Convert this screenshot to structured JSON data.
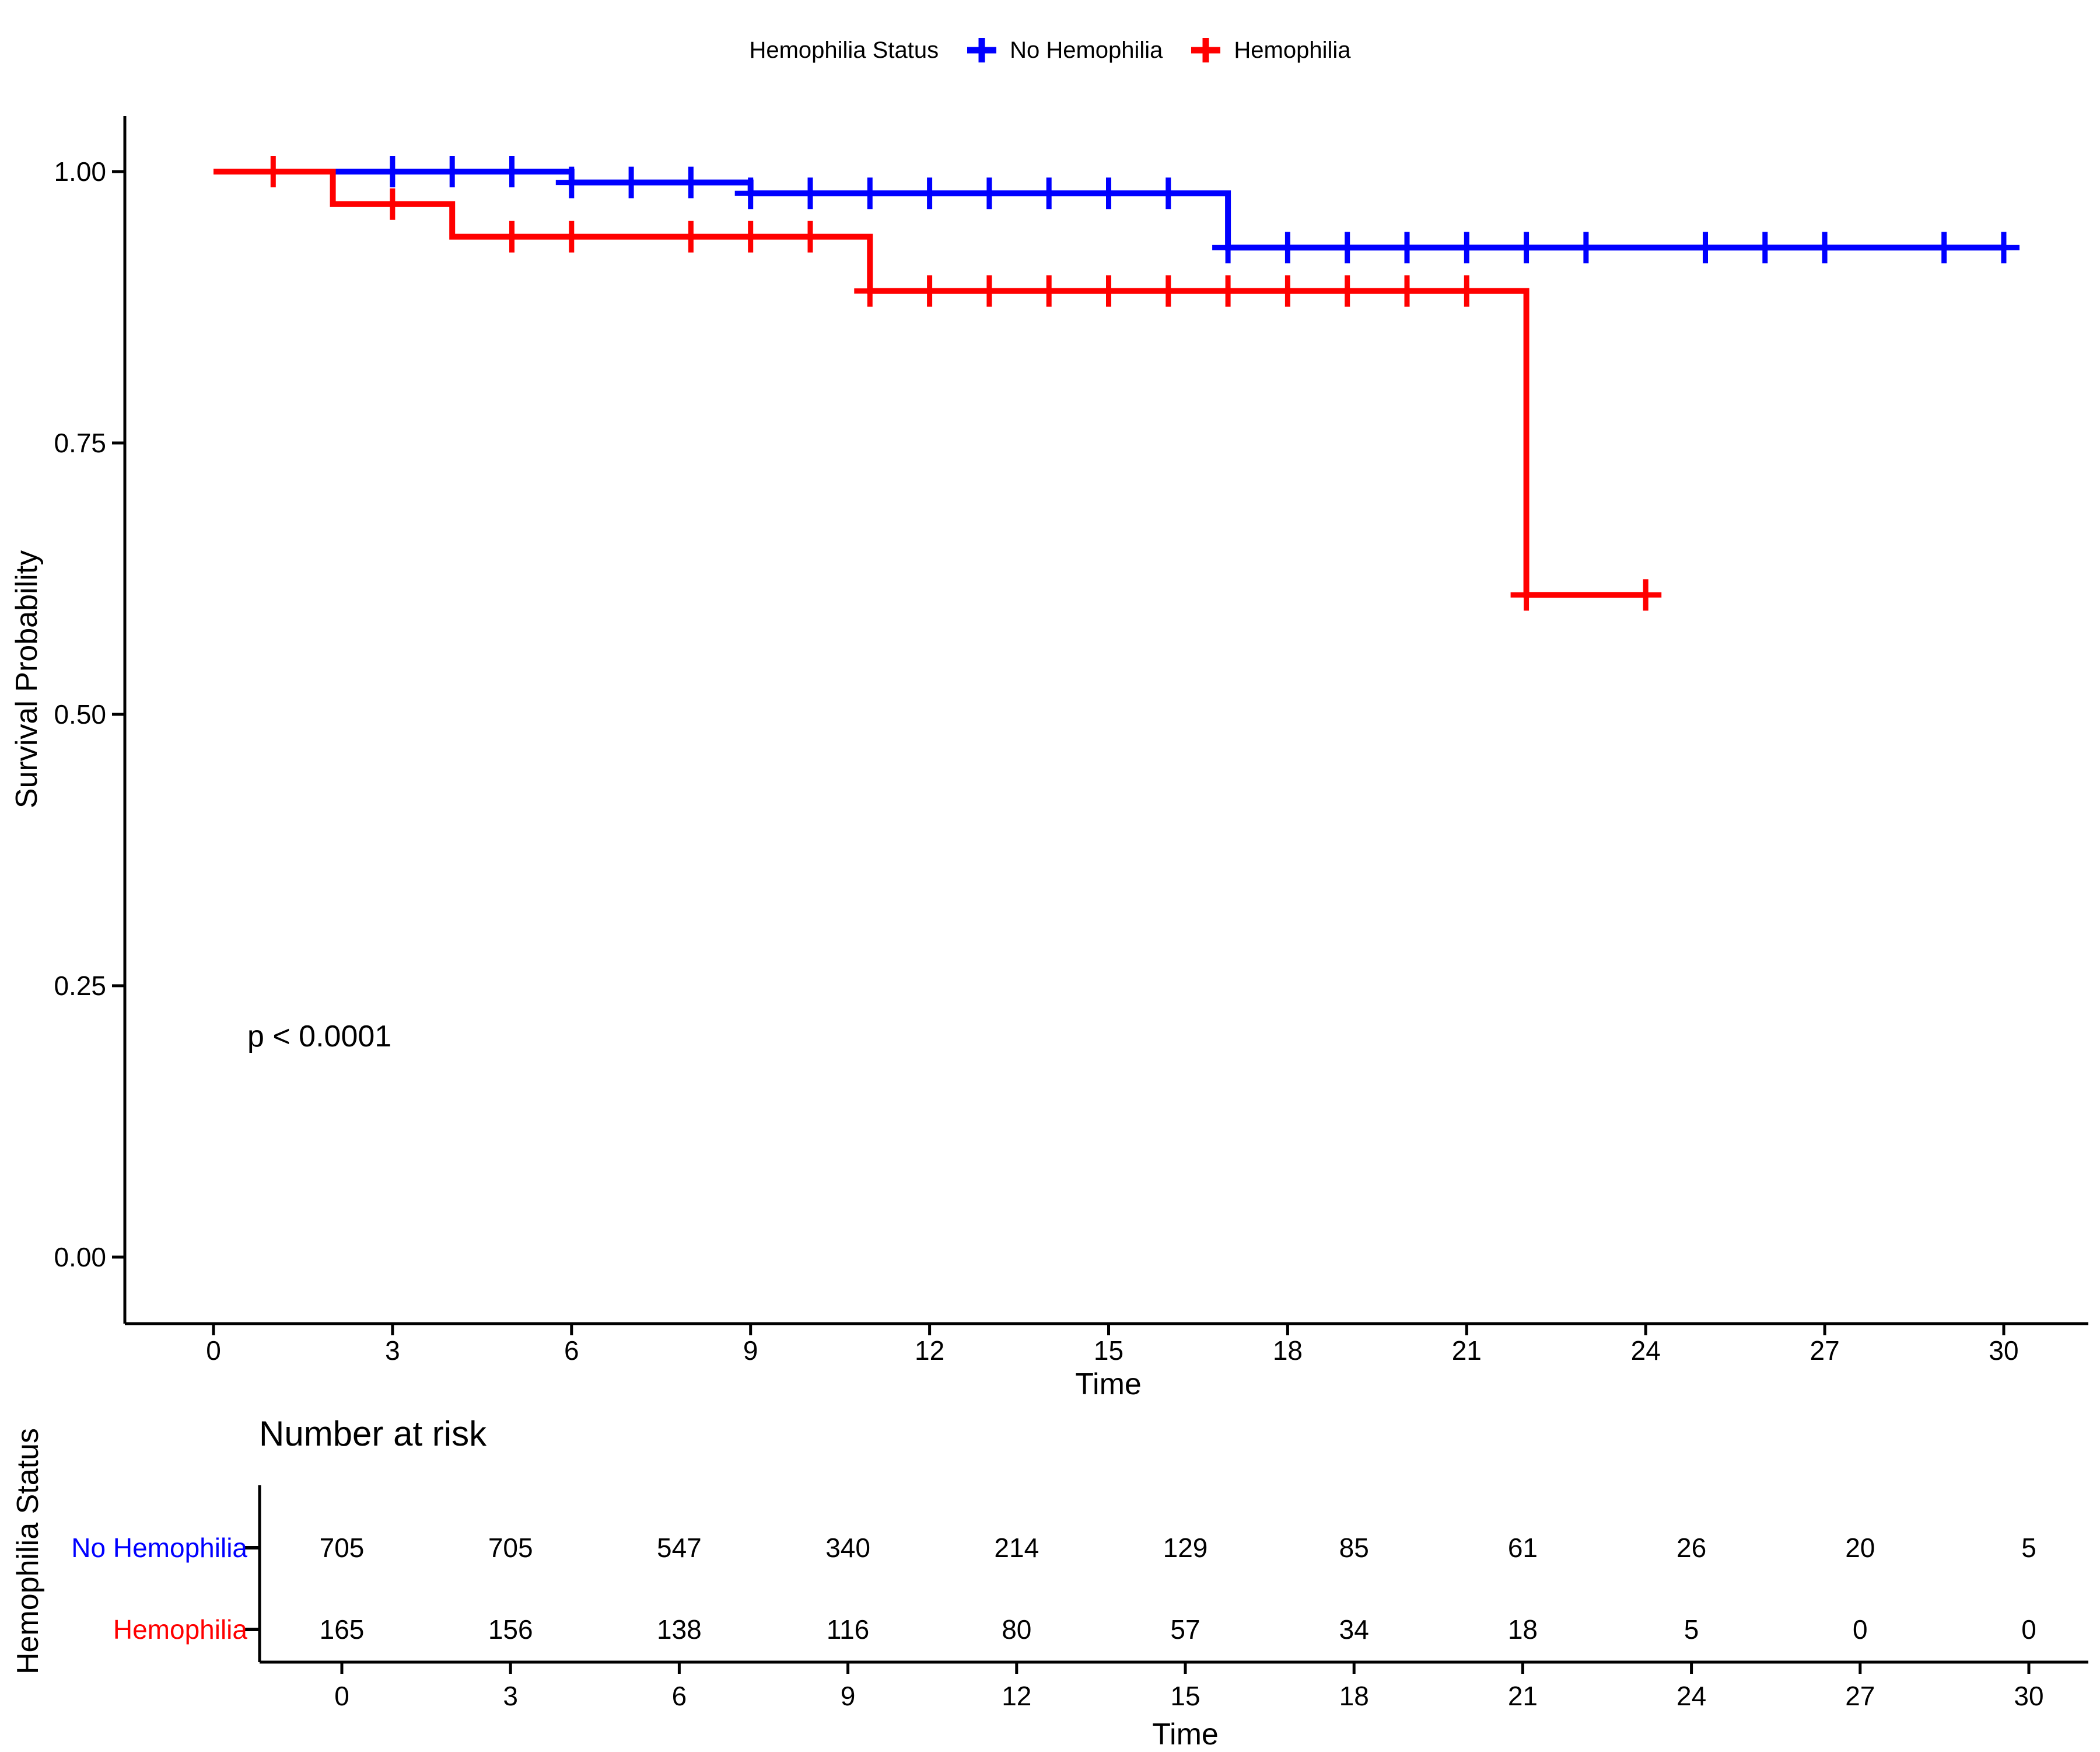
{
  "page": {
    "background": "#FFFFFF"
  },
  "colors": {
    "no_hemophilia": "#0000FF",
    "hemophilia": "#FF0000",
    "axis": "#000000"
  },
  "legend": {
    "title": "Hemophilia Status",
    "entries": [
      {
        "label": "No Hemophilia",
        "color": "#0000FF"
      },
      {
        "label": "Hemophilia",
        "color": "#FF0000"
      }
    ]
  },
  "main_plot": {
    "y_axis_title": "Survival Probability",
    "x_axis_title": "Time",
    "pvalue": "p < 0.0001"
  },
  "chart_data": {
    "type": "line",
    "subtype": "kaplan-meier-step",
    "title": "",
    "xlabel": "Time",
    "ylabel": "Survival Probability",
    "xlim": [
      0,
      30
    ],
    "ylim": [
      0,
      1
    ],
    "grid": false,
    "legend_position": "top",
    "x_ticks": [
      0,
      3,
      6,
      9,
      12,
      15,
      18,
      21,
      24,
      27,
      30
    ],
    "y_ticks": [
      1.0,
      0.75,
      0.5,
      0.25,
      0.0
    ],
    "y_tick_labels": [
      "1.00",
      "0.75",
      "0.50",
      "0.25",
      "0.00"
    ],
    "pvalue_annotation": {
      "text": "p < 0.0001",
      "x": 0.6,
      "y": 0.2
    },
    "series": [
      {
        "name": "No Hemophilia",
        "color": "#0000FF",
        "steps": [
          [
            0,
            1.0
          ],
          [
            6,
            0.99
          ],
          [
            9,
            0.98
          ],
          [
            17,
            0.93
          ]
        ],
        "end_time": 30,
        "censor_times": [
          3,
          4,
          5,
          6,
          7,
          8,
          9,
          10,
          11,
          12,
          13,
          14,
          15,
          16,
          17,
          18,
          19,
          20,
          21,
          22,
          23,
          25,
          26,
          27,
          29,
          30
        ]
      },
      {
        "name": "Hemophilia",
        "color": "#FF0000",
        "steps": [
          [
            0,
            1.0
          ],
          [
            2,
            0.97
          ],
          [
            4,
            0.94
          ],
          [
            11,
            0.89
          ],
          [
            22,
            0.61
          ]
        ],
        "end_time": 24,
        "censor_times": [
          1,
          3,
          5,
          6,
          8,
          9,
          10,
          11,
          12,
          13,
          14,
          15,
          16,
          17,
          18,
          19,
          20,
          21,
          22,
          24
        ]
      }
    ]
  },
  "risk_table": {
    "title": "Number at risk",
    "y_axis_title": "Hemophilia Status",
    "x_axis_title": "Time",
    "times": [
      0,
      3,
      6,
      9,
      12,
      15,
      18,
      21,
      24,
      27,
      30
    ],
    "rows": [
      {
        "label": "No Hemophilia",
        "color": "#0000FF",
        "counts": [
          705,
          705,
          547,
          340,
          214,
          129,
          85,
          61,
          26,
          20,
          5
        ]
      },
      {
        "label": "Hemophilia",
        "color": "#FF0000",
        "counts": [
          165,
          156,
          138,
          116,
          80,
          57,
          34,
          18,
          5,
          0,
          0
        ]
      }
    ]
  }
}
